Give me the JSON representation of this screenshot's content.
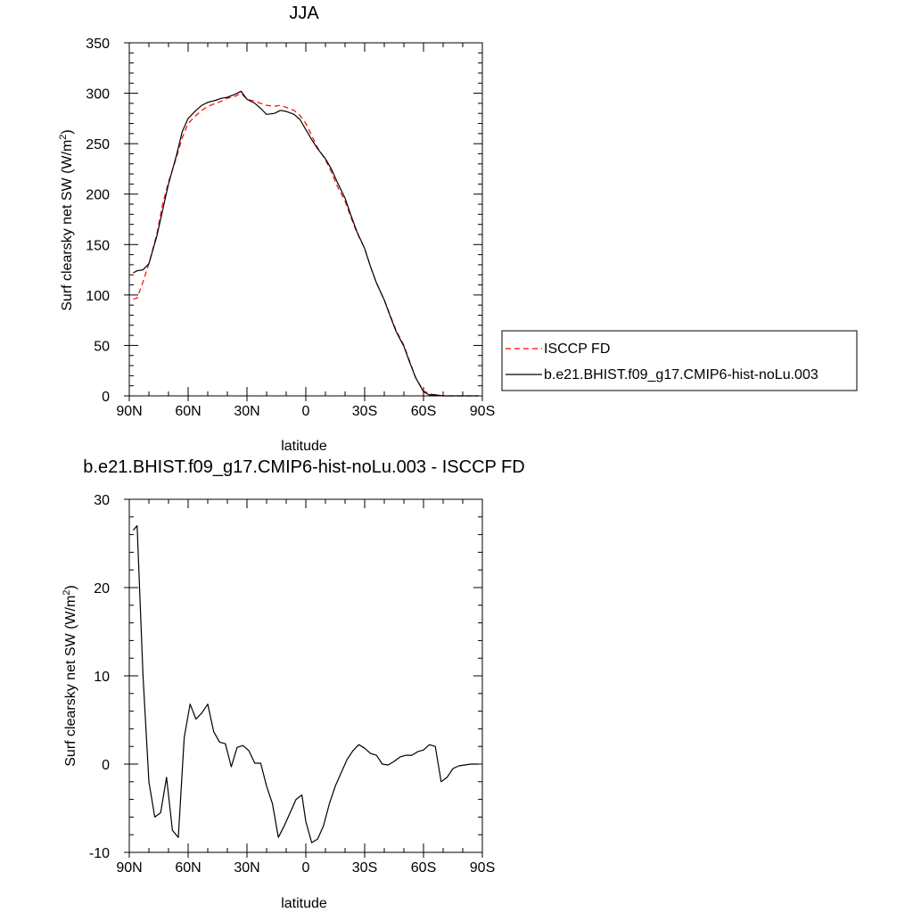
{
  "chart_data": [
    {
      "type": "line",
      "title": "JJA",
      "xlabel": "latitude",
      "ylabel": "Surf clearsky net SW (W/m",
      "ylabel_sup": "2",
      "ylabel_end": ")",
      "xlim": [
        90,
        -90
      ],
      "ylim": [
        0,
        350
      ],
      "xticks": [
        90,
        60,
        30,
        0,
        -30,
        -60,
        -90
      ],
      "xtick_labels": [
        "90N",
        "60N",
        "30N",
        "0",
        "30S",
        "60S",
        "90S"
      ],
      "yticks": [
        0,
        50,
        100,
        150,
        200,
        250,
        300,
        350
      ],
      "ytick_labels": [
        "0",
        "50",
        "100",
        "150",
        "200",
        "250",
        "300",
        "350"
      ],
      "legend_position": "right",
      "series": [
        {
          "name": "ISCCP FD",
          "color": "#ff0000",
          "dash": true,
          "x": [
            88,
            86,
            83,
            80,
            76,
            73,
            70,
            66,
            63,
            60,
            56,
            53,
            50,
            46,
            43,
            40,
            36,
            33,
            30,
            26,
            23,
            20,
            16,
            13,
            10,
            6,
            3,
            0,
            -3,
            -6,
            -10,
            -13,
            -16,
            -20,
            -23,
            -26,
            -30,
            -33,
            -36,
            -40,
            -43,
            -46,
            -50,
            -53,
            -56,
            -60,
            -63,
            -66,
            -70,
            -73,
            -76,
            -80,
            -83,
            -86,
            -88
          ],
          "y": [
            96,
            97,
            113,
            131,
            160,
            190,
            212,
            236,
            256,
            270,
            278,
            283,
            287,
            290,
            292,
            295,
            297,
            300,
            294,
            292,
            290,
            288,
            287,
            288,
            286,
            283,
            278,
            270,
            258,
            246,
            234,
            222,
            208,
            193,
            177,
            162,
            146,
            128,
            112,
            95,
            80,
            65,
            50,
            34,
            18,
            5,
            2,
            1,
            0,
            0,
            0,
            0,
            0,
            0,
            0
          ]
        },
        {
          "name": "b.e21.BHIST.f09_g17.CMIP6-hist-noLu.003",
          "color": "#000000",
          "dash": false,
          "x": [
            88,
            86,
            83,
            80,
            76,
            73,
            70,
            66,
            63,
            60,
            56,
            53,
            50,
            46,
            43,
            40,
            36,
            33,
            30,
            26,
            23,
            20,
            16,
            13,
            10,
            6,
            3,
            0,
            -3,
            -6,
            -10,
            -13,
            -16,
            -20,
            -23,
            -26,
            -30,
            -33,
            -36,
            -40,
            -43,
            -46,
            -50,
            -53,
            -56,
            -60,
            -63,
            -66,
            -70,
            -73,
            -76,
            -80,
            -83,
            -86,
            -88
          ],
          "y": [
            122,
            124,
            125,
            131,
            158,
            184,
            210,
            238,
            262,
            275,
            283,
            288,
            291,
            293,
            295,
            296,
            299,
            302,
            294,
            290,
            285,
            279,
            280,
            283,
            282,
            279,
            274,
            264,
            254,
            245,
            235,
            225,
            212,
            196,
            179,
            163,
            146,
            128,
            112,
            95,
            79,
            64,
            49,
            33,
            18,
            4,
            1,
            1,
            0,
            0,
            0,
            0,
            0,
            0,
            0
          ]
        }
      ]
    },
    {
      "type": "line",
      "title": "b.e21.BHIST.f09_g17.CMIP6-hist-noLu.003 - ISCCP FD",
      "xlabel": "latitude",
      "ylabel": "Surf clearsky net SW (W/m",
      "ylabel_sup": "2",
      "ylabel_end": ")",
      "xlim": [
        90,
        -90
      ],
      "ylim": [
        -10,
        30
      ],
      "xticks": [
        90,
        60,
        30,
        0,
        -30,
        -60,
        -90
      ],
      "xtick_labels": [
        "90N",
        "60N",
        "30N",
        "0",
        "30S",
        "60S",
        "90S"
      ],
      "yticks": [
        -10,
        0,
        10,
        20,
        30
      ],
      "ytick_labels": [
        "-10",
        "0",
        "10",
        "20",
        "30"
      ],
      "series": [
        {
          "color": "#000000",
          "dash": false,
          "x": [
            88,
            86,
            83,
            80,
            77,
            74,
            71,
            68,
            65,
            62,
            59,
            56,
            53,
            50,
            47,
            44,
            41,
            38,
            35,
            32,
            29,
            26,
            23,
            20,
            17,
            14,
            11,
            8,
            5,
            2,
            0,
            -3,
            -6,
            -9,
            -12,
            -15,
            -18,
            -21,
            -24,
            -27,
            -30,
            -33,
            -36,
            -39,
            -42,
            -45,
            -48,
            -51,
            -54,
            -57,
            -60,
            -63,
            -66,
            -69,
            -72,
            -75,
            -78,
            -81,
            -84,
            -88
          ],
          "y": [
            26.5,
            27.0,
            10.0,
            -2.0,
            -6.0,
            -5.5,
            -1.5,
            -7.5,
            -8.3,
            3.0,
            6.8,
            5.1,
            5.8,
            6.8,
            3.7,
            2.5,
            2.3,
            -0.3,
            1.9,
            2.1,
            1.5,
            0.1,
            0.1,
            -2.5,
            -4.5,
            -8.3,
            -7.0,
            -5.5,
            -4.0,
            -3.5,
            -6.5,
            -8.9,
            -8.5,
            -7.0,
            -4.5,
            -2.5,
            -1.0,
            0.5,
            1.5,
            2.2,
            1.8,
            1.2,
            1.0,
            0.0,
            -0.1,
            0.3,
            0.8,
            1.0,
            1.0,
            1.4,
            1.6,
            2.2,
            2.0,
            -2.0,
            -1.5,
            -0.5,
            -0.2,
            -0.1,
            0.0,
            0.0
          ]
        }
      ]
    }
  ]
}
